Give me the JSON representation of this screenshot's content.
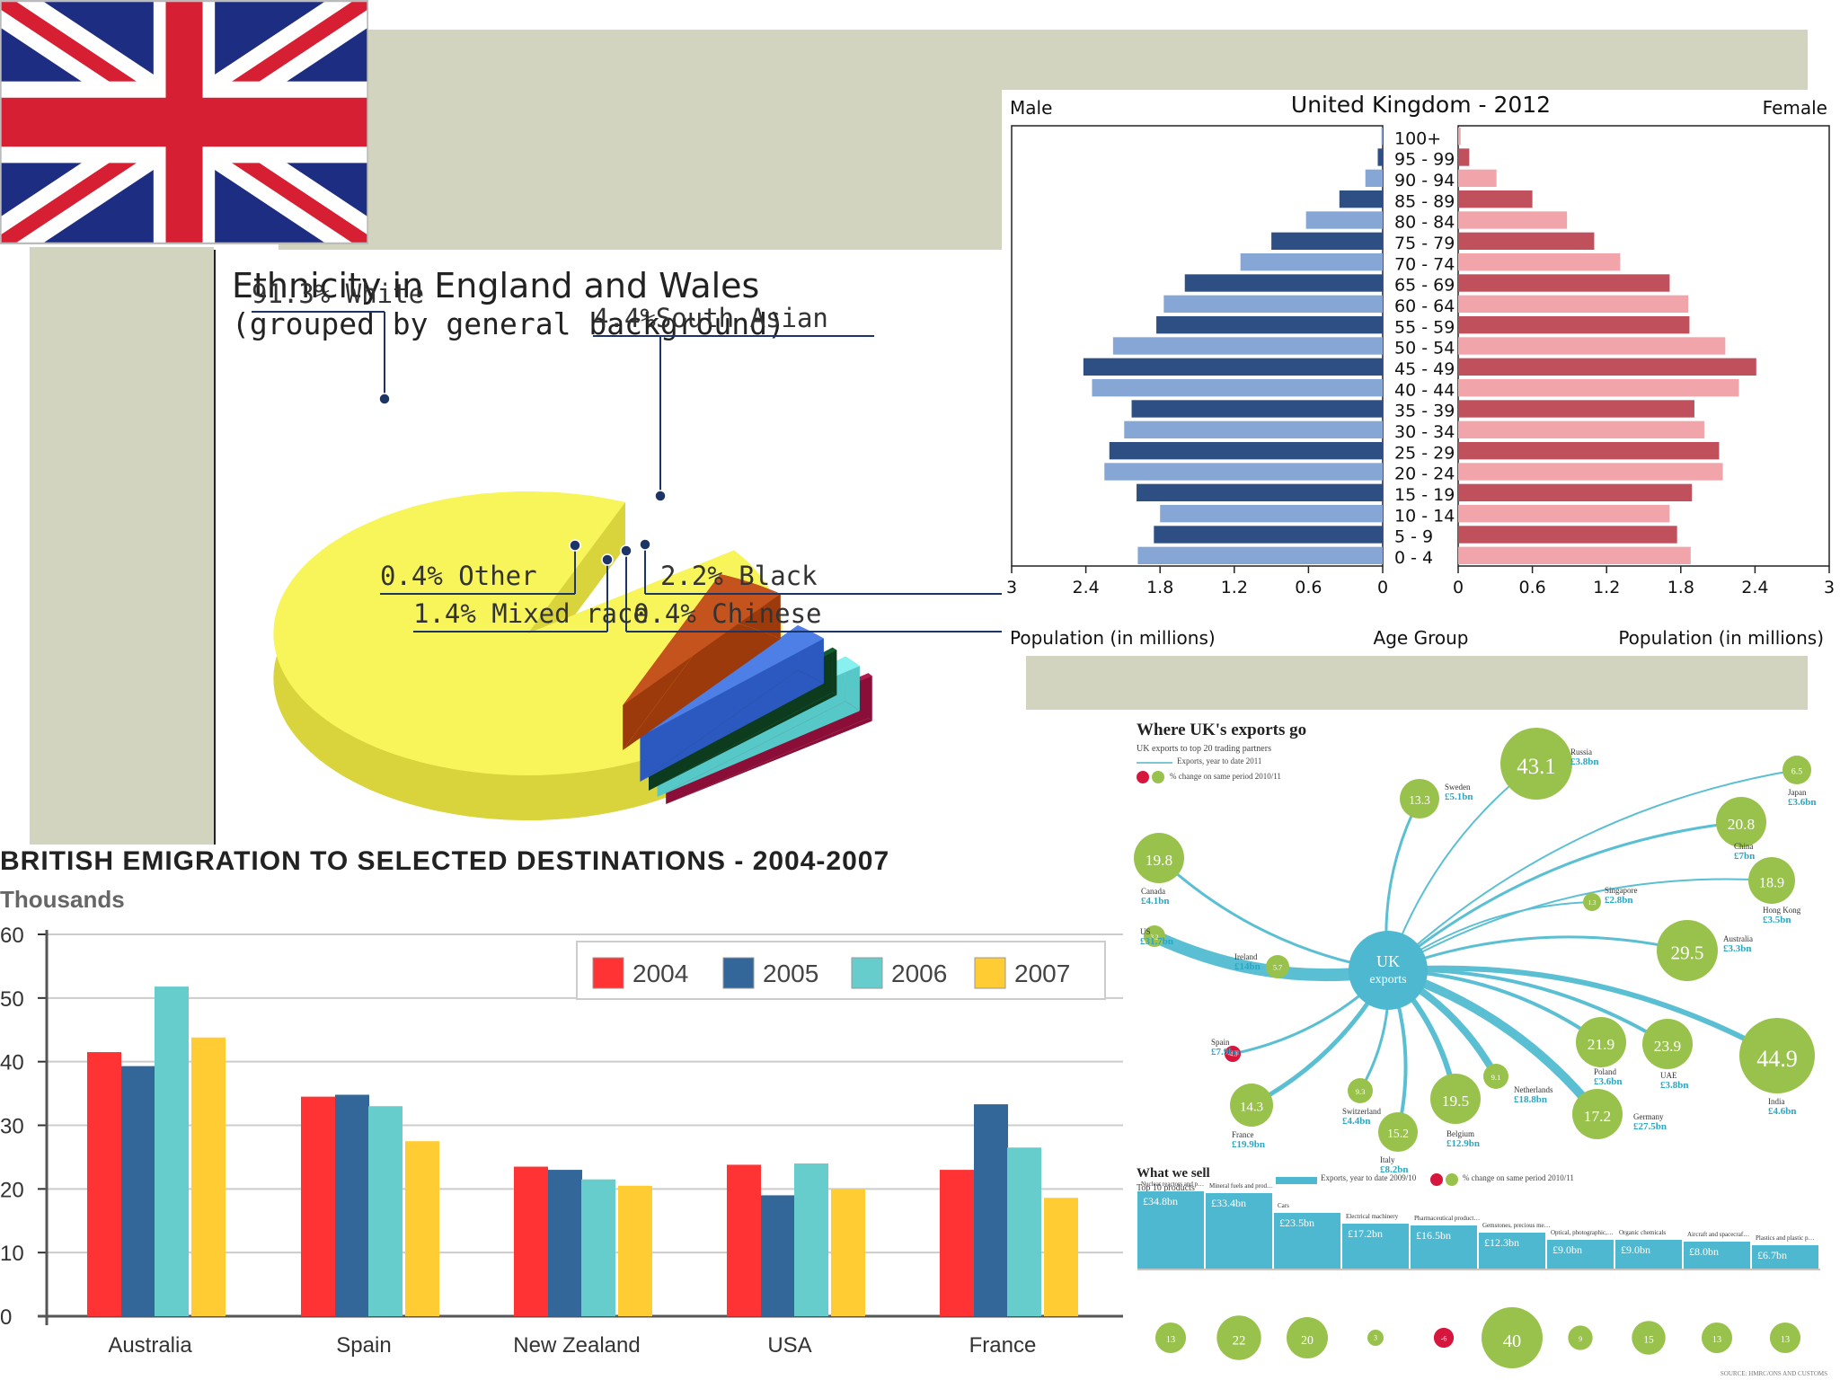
{
  "flag": {
    "name": "united-kingdom-flag"
  },
  "colors": {
    "olive_bg": "#d3d4c0",
    "flag_blue": "#1d2d82",
    "flag_red": "#d71f33"
  },
  "chart_data": [
    {
      "type": "pie",
      "title": "Ethnicity in England and Wales",
      "subtitle": "(grouped by general background)",
      "slices": [
        {
          "label": "91.3% White",
          "value": 91.3,
          "color": "#f7f55a",
          "side": "#d9d33c"
        },
        {
          "label": "4.4%South Asian",
          "value": 4.4,
          "color": "#c4531e",
          "side": "#9c3a0c"
        },
        {
          "label": "2.2% Black",
          "value": 2.2,
          "color": "#4d7fe6",
          "side": "#2b59c0"
        },
        {
          "label": "0.4% Chinese",
          "value": 0.4,
          "color": "#155c2f",
          "side": "#0c3b1d"
        },
        {
          "label": "1.4% Mixed race",
          "value": 1.4,
          "color": "#88f1f0",
          "side": "#56c8c8"
        },
        {
          "label": "0.4% Other",
          "value": 0.4,
          "color": "#b31c4f",
          "side": "#8a0e37"
        }
      ]
    },
    {
      "type": "bar",
      "subtype": "population-pyramid",
      "title": "United Kingdom - 2012",
      "left_label": "Male",
      "right_label": "Female",
      "xlabel_left": "Population (in millions)",
      "xlabel_center": "Age Group",
      "xlabel_right": "Population (in millions)",
      "xlim": [
        0,
        3
      ],
      "ticks_left": [
        "3",
        "2.4",
        "1.8",
        "1.2",
        "0.6",
        "0"
      ],
      "ticks_right": [
        "0",
        "0.6",
        "1.2",
        "1.8",
        "2.4",
        "3"
      ],
      "age_groups": [
        "100+",
        "95 - 99",
        "90 - 94",
        "85 - 89",
        "80 - 84",
        "75 - 79",
        "70 - 74",
        "65 - 69",
        "60 - 64",
        "55 - 59",
        "50 - 54",
        "45 - 49",
        "40 - 44",
        "35 - 39",
        "30 - 34",
        "25 - 29",
        "20 - 24",
        "15 - 19",
        "10 - 14",
        "5 - 9",
        "0 - 4"
      ],
      "male": [
        0.01,
        0.04,
        0.14,
        0.35,
        0.62,
        0.9,
        1.15,
        1.6,
        1.77,
        1.83,
        2.18,
        2.42,
        2.35,
        2.03,
        2.09,
        2.21,
        2.25,
        1.99,
        1.8,
        1.85,
        1.98
      ],
      "female": [
        0.02,
        0.09,
        0.31,
        0.6,
        0.88,
        1.1,
        1.31,
        1.71,
        1.86,
        1.87,
        2.16,
        2.41,
        2.27,
        1.91,
        1.99,
        2.11,
        2.14,
        1.89,
        1.71,
        1.77,
        1.88
      ],
      "male_colors": [
        "#86a6d6",
        "#2d4f84"
      ],
      "female_colors": [
        "#f2a4ab",
        "#c0505c"
      ]
    },
    {
      "type": "bar",
      "title": "BRITISH EMIGRATION TO SELECTED DESTINATIONS - 2004-2007",
      "ylabel": "Thousands",
      "ylim": [
        0,
        60
      ],
      "yticks": [
        "0",
        "10",
        "20",
        "30",
        "40",
        "50",
        "60"
      ],
      "categories": [
        "Australia",
        "Spain",
        "New Zealand",
        "USA",
        "France"
      ],
      "series": [
        {
          "name": "2004",
          "color": "#ff3333",
          "values": [
            41.5,
            34.5,
            23.5,
            23.8,
            23
          ]
        },
        {
          "name": "2005",
          "color": "#336699",
          "values": [
            39.3,
            34.8,
            23,
            19,
            33.3
          ]
        },
        {
          "name": "2006",
          "color": "#66cccc",
          "values": [
            51.8,
            33,
            21.5,
            24,
            26.5
          ]
        },
        {
          "name": "2007",
          "color": "#ffcc33",
          "values": [
            43.8,
            27.5,
            20.5,
            20,
            18.6
          ]
        }
      ]
    }
  ],
  "exports": {
    "title": "Where UK's exports go",
    "subtitle": "UK exports to top 20 trading partners",
    "legend_line": "Exports, year to date 2011",
    "legend_change": "% change on same period 2010/11",
    "hub_line1": "UK",
    "hub_line2": "exports",
    "partners": [
      {
        "name": "Russia",
        "value": "£3.8bn",
        "change": "43.1"
      },
      {
        "name": "Japan",
        "value": "£3.6bn",
        "change": "6.5"
      },
      {
        "name": "China",
        "value": "£7bn",
        "change": "20.8"
      },
      {
        "name": "Hong Kong",
        "value": "£3.5bn",
        "change": "18.9"
      },
      {
        "name": "Australia",
        "value": "£3.3bn",
        "change": "29.5"
      },
      {
        "name": "India",
        "value": "£4.6bn",
        "change": "44.9"
      },
      {
        "name": "Germany",
        "value": "£27.5bn",
        "change": "17.2"
      },
      {
        "name": "UAE",
        "value": "£3.8bn",
        "change": "23.9"
      },
      {
        "name": "Poland",
        "value": "£3.6bn",
        "change": "21.9"
      },
      {
        "name": "Netherlands",
        "value": "£18.8bn",
        "change": "9.1"
      },
      {
        "name": "Belgium",
        "value": "£12.9bn",
        "change": "19.5"
      },
      {
        "name": "Italy",
        "value": "£8.2bn",
        "change": "15.2"
      },
      {
        "name": "Switzerland",
        "value": "£4.4bn",
        "change": "9.3"
      },
      {
        "name": "France",
        "value": "£19.9bn",
        "change": "14.3"
      },
      {
        "name": "Spain",
        "value": "£7.9bn",
        "change": "-4.3"
      },
      {
        "name": "Ireland",
        "value": "£14bn",
        "change": "5.7"
      },
      {
        "name": "US",
        "value": "£31.7bn",
        "change": "3.2"
      },
      {
        "name": "Canada",
        "value": "£4.1bn",
        "change": "19.8"
      },
      {
        "name": "Singapore",
        "value": "£2.8bn",
        "change": "1.3"
      },
      {
        "name": "Sweden",
        "value": "£5.1bn",
        "change": "13.3"
      }
    ],
    "sell_title": "What we sell",
    "sell_subtitle": "Top 10 products",
    "sell_legend_bar": "Exports, year to date 2009/10",
    "sell_legend_change": "% change on same period 2010/11",
    "products": [
      {
        "name": "Nuclear reactors and parts thereof",
        "value": "£34.8bn",
        "change": "13"
      },
      {
        "name": "Mineral fuels and products of their distillation",
        "value": "£33.4bn",
        "change": "22"
      },
      {
        "name": "Cars",
        "value": "£23.5bn",
        "change": "20"
      },
      {
        "name": "Electrical machinery",
        "value": "£17.2bn",
        "change": "3"
      },
      {
        "name": "Pharmaceutical products",
        "value": "£16.5bn",
        "change": "-6"
      },
      {
        "name": "Gemstones, precious metals",
        "value": "£12.3bn",
        "change": "40"
      },
      {
        "name": "Optical, photographic, medical and surgical instruments",
        "value": "£9.0bn",
        "change": "9"
      },
      {
        "name": "Organic chemicals",
        "value": "£9.0bn",
        "change": "15"
      },
      {
        "name": "Aircraft and spacecraft",
        "value": "£8.0bn",
        "change": "13"
      },
      {
        "name": "Plastics and plastic products",
        "value": "£6.7bn",
        "change": "13"
      }
    ],
    "source": "SOURCE: HMRC/ONS AND CUSTOMS"
  }
}
